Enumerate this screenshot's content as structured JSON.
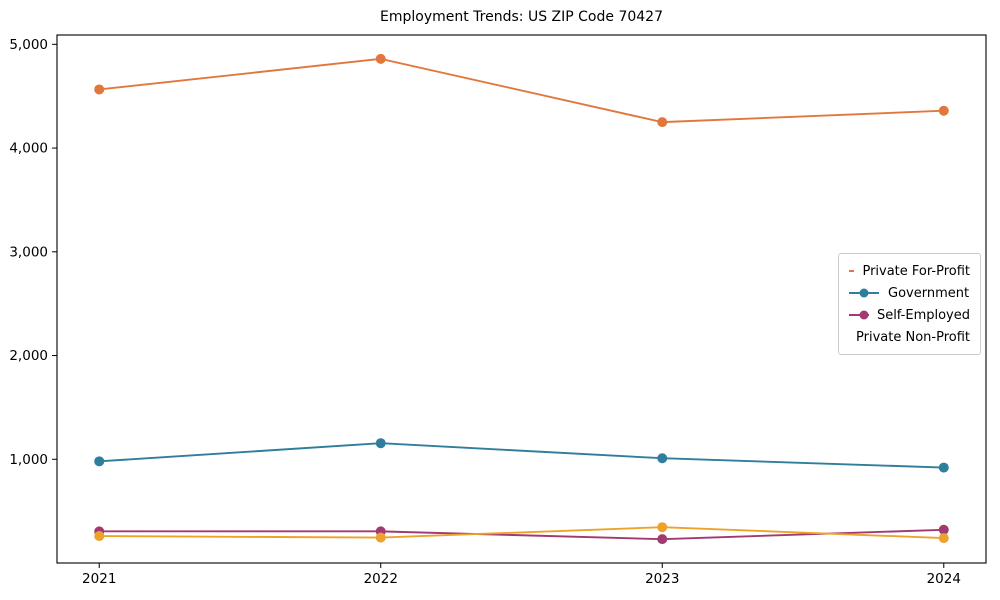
{
  "chart_data": {
    "type": "line",
    "title": "Employment Trends: US ZIP Code 70427",
    "xlabel": "",
    "ylabel": "",
    "x": [
      2021,
      2022,
      2023,
      2024
    ],
    "x_tick_labels": [
      "2021",
      "2022",
      "2023",
      "2024"
    ],
    "y_ticks": [
      1000,
      2000,
      3000,
      4000,
      5000
    ],
    "y_tick_labels": [
      "1,000",
      "2,000",
      "3,000",
      "4,000",
      "5,000"
    ],
    "xlim": [
      2020.85,
      2024.15
    ],
    "ylim": [
      0,
      5090
    ],
    "grid": false,
    "legend_position": "center-right",
    "marker": "circle",
    "series": [
      {
        "name": "Private For-Profit",
        "color": "#e2773d",
        "values": [
          4565,
          4860,
          4250,
          4360
        ]
      },
      {
        "name": "Government",
        "color": "#2e7e9c",
        "values": [
          980,
          1155,
          1010,
          920
        ]
      },
      {
        "name": "Self-Employed",
        "color": "#a23a72",
        "values": [
          305,
          305,
          230,
          320
        ]
      },
      {
        "name": "Private Non-Profit",
        "color": "#eda32b",
        "values": [
          260,
          245,
          345,
          240
        ]
      }
    ]
  }
}
